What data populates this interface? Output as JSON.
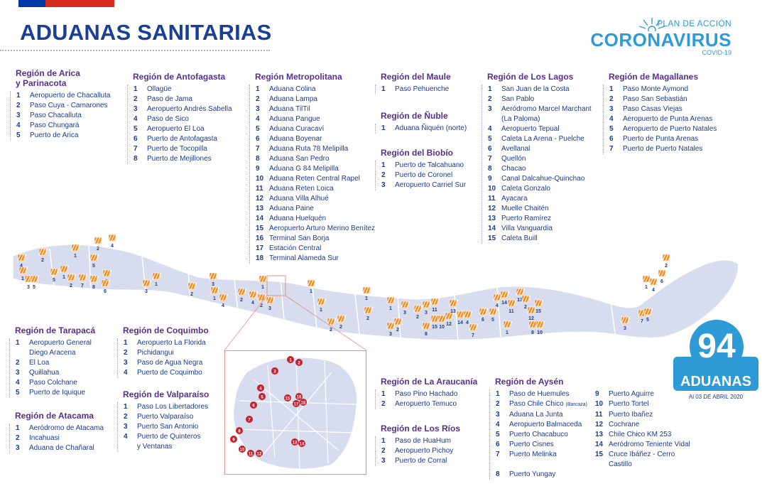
{
  "title": "ADUANAS SANITARIAS",
  "logo": {
    "plan": "PLAN DE ACCIÓN",
    "corona": "CORONAVIRUS",
    "covid": "COVID-19"
  },
  "badge": {
    "count": "94",
    "label": "ADUANAS",
    "date": "Al 03 DE ABRIL 2020"
  },
  "colors": {
    "title": "#1a3f96",
    "region_heading": "#5a2f8c",
    "accent": "#2e9bd6",
    "map_fill": "#d7dcef",
    "marker": "#f28c1e",
    "inset_border": "#e0938a"
  },
  "regions": [
    {
      "id": "arica",
      "name": "Región de Arica\ny Parinacota",
      "items": [
        "Aeropuerto de Chacalluta",
        "Paso Cuya - Camarones",
        "Paso Chacalluta",
        "Paso Chungará",
        "Puerto de Arica"
      ]
    },
    {
      "id": "antofagasta",
      "name": "Región de Antofagasta",
      "items": [
        "Ollagüe",
        "Paso de Jama",
        "Aeropuerto Andrés Sabella",
        "Paso de Sico",
        "Aeropuerto El Loa",
        "Puerto de Antofagasta",
        "Puerto de Tocopilla",
        "Puerto de Mejillones"
      ]
    },
    {
      "id": "metropolitana",
      "name": "Región Metropolitana",
      "items": [
        "Aduana Colina",
        "Aduana Lampa",
        "Aduana TilTil",
        "Aduana Pangue",
        "Aduana Curacaví",
        "Aduana Boyenar",
        "Aduana Ruta 78 Melipilla",
        "Aduana San Pedro",
        "Aduana G 84 Melipilla",
        "Aduana Reten Central Rapel",
        "Aduana Reten Loica",
        "Aduana Villa Alhué",
        "Aduana Paine",
        "Aduana Huelquén",
        "Aeropuerto Arturo Merino Benítez",
        "Terminal San Borja",
        "Estación Central",
        "Terminal Alameda Sur"
      ]
    },
    {
      "id": "maule",
      "name": "Región del Maule",
      "items": [
        "Paso Pehuenche"
      ]
    },
    {
      "id": "nuble",
      "name": "Región de Ñuble",
      "items": [
        "Aduana Ñiquén (norte)"
      ]
    },
    {
      "id": "biobio",
      "name": "Región del Biobío",
      "items": [
        "Puerto de Talcahuano",
        "Puerto de Coronel",
        "Aeropuerto Carriel Sur"
      ]
    },
    {
      "id": "loslagos",
      "name": "Región de Los Lagos",
      "items": [
        "San Juan de la Costa",
        "San Pablo",
        "Aeródromo Marcel Marchant\n(La Paloma)",
        "Aeropuerto Tepual",
        "Caleta La Arena - Puelche",
        "Avellanal",
        "Quellón",
        "Chacao",
        "Canal Dalcahue-Quinchao",
        "Caleta Gonzalo",
        "Ayacara",
        "Muelle Chaitén",
        "Puerto Ramírez",
        "Villa Vanguardia",
        "Caleta Buill"
      ]
    },
    {
      "id": "magallanes",
      "name": "Región de Magallanes",
      "items": [
        "Paso Monte Aymond",
        "Paso San Sebastián",
        "Paso Casas Viejas",
        "Aeropuerto de Punta Arenas",
        "Aeropuerto de Puerto Natales",
        "Puerto de Punta Arenas",
        "Puerto de Puerto Natales"
      ]
    },
    {
      "id": "tarapaca",
      "name": "Región de Tarapacá",
      "items": [
        "Aeropuerto General\nDiego Aracena",
        "El Loa",
        "Quillahua",
        "Paso Colchane",
        "Puerto de Iquique"
      ]
    },
    {
      "id": "atacama",
      "name": "Región de Atacama",
      "items": [
        "Aeródromo de Atacama",
        "Incahuasi",
        "Aduana de Chañaral"
      ]
    },
    {
      "id": "coquimbo",
      "name": "Región de Coquimbo",
      "items": [
        "Aeropuerto La Florida",
        "Pichidangui",
        "Paso de Agua Negra",
        "Puerto de Coquimbo"
      ]
    },
    {
      "id": "valparaiso",
      "name": "Región de Valparaíso",
      "items": [
        "Paso Los Libertadores",
        "Puerto Valparaíso",
        "Puerto San Antonio",
        "Puerto de Quinteros\ny Ventanas"
      ]
    },
    {
      "id": "araucania",
      "name": "Región de La Araucanía",
      "items": [
        "Paso Pino Hachado",
        "Aeropuerto Temuco"
      ]
    },
    {
      "id": "losrios",
      "name": "Región de Los Ríos",
      "items": [
        "Paso de HuaHum",
        "Aeropuerto Pichoy",
        "Puerto de Corral"
      ]
    },
    {
      "id": "aysen",
      "name": "Región de Aysén",
      "items": [
        "Paso de Huemules",
        "Paso Chile Chico (Barcaza)",
        "Aduana La Junta",
        "Aeropuerto Balmaceda",
        "Puerto Chacabuco",
        "Puerto Cisnes",
        "Puerto Melinka",
        "Puerto Yungay",
        "Puerto Aguirre",
        "Puerto Tortel",
        "Puerto Ibañez",
        "Cochrane",
        "Chile Chico KM 253",
        "Aeródromo Teniente Vidal",
        "Cruce Ibáñez - Cerro Castillo"
      ]
    }
  ],
  "inset_numbers": [
    "1",
    "2",
    "3",
    "4",
    "5",
    "6",
    "7",
    "8",
    "9",
    "10",
    "11",
    "12",
    "13",
    "14",
    "15",
    "16",
    "17",
    "18"
  ]
}
